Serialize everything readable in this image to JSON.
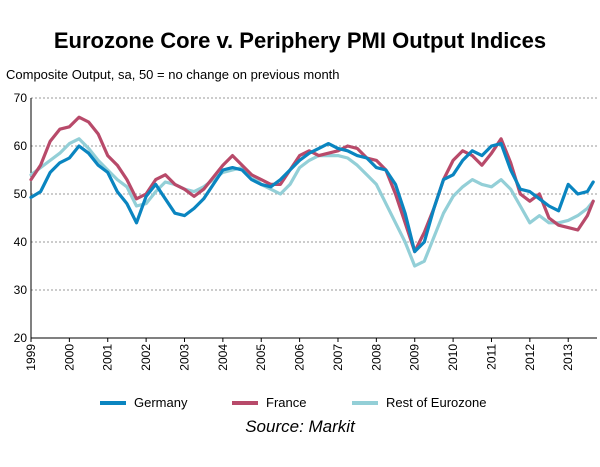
{
  "chart_data": {
    "type": "line",
    "title": "Eurozone Core v. Periphery PMI Output Indices",
    "subtitle": "Composite Output, sa, 50 = no change on previous month",
    "source": "Source: Markit",
    "ylim": [
      20,
      70
    ],
    "yticks": [
      20,
      30,
      40,
      50,
      60,
      70
    ],
    "xlim": [
      1999.0,
      2013.75
    ],
    "xticks": [
      "1999",
      "2000",
      "2001",
      "2002",
      "2003",
      "2004",
      "2005",
      "2006",
      "2007",
      "2008",
      "2009",
      "2010",
      "2011",
      "2012",
      "2013"
    ],
    "grid": "horizontal-dotted",
    "legend_position": "bottom",
    "series": [
      {
        "name": "Germany",
        "color": "#0a85c0",
        "points": [
          [
            1999.0,
            49.3
          ],
          [
            1999.25,
            50.5
          ],
          [
            1999.5,
            54.5
          ],
          [
            1999.75,
            56.5
          ],
          [
            2000.0,
            57.5
          ],
          [
            2000.25,
            60.0
          ],
          [
            2000.5,
            58.5
          ],
          [
            2000.75,
            56.0
          ],
          [
            2001.0,
            54.5
          ],
          [
            2001.25,
            50.5
          ],
          [
            2001.5,
            48.0
          ],
          [
            2001.75,
            44.0
          ],
          [
            2002.0,
            49.5
          ],
          [
            2002.25,
            52.0
          ],
          [
            2002.5,
            49.0
          ],
          [
            2002.75,
            46.0
          ],
          [
            2003.0,
            45.5
          ],
          [
            2003.25,
            47.0
          ],
          [
            2003.5,
            49.0
          ],
          [
            2003.75,
            52.0
          ],
          [
            2004.0,
            55.0
          ],
          [
            2004.25,
            55.5
          ],
          [
            2004.5,
            55.0
          ],
          [
            2004.75,
            53.0
          ],
          [
            2005.0,
            52.0
          ],
          [
            2005.25,
            51.5
          ],
          [
            2005.5,
            53.0
          ],
          [
            2005.75,
            55.0
          ],
          [
            2006.0,
            57.0
          ],
          [
            2006.25,
            58.5
          ],
          [
            2006.5,
            59.5
          ],
          [
            2006.75,
            60.5
          ],
          [
            2007.0,
            59.5
          ],
          [
            2007.25,
            59.0
          ],
          [
            2007.5,
            58.0
          ],
          [
            2007.75,
            57.5
          ],
          [
            2008.0,
            55.5
          ],
          [
            2008.25,
            55.0
          ],
          [
            2008.5,
            52.0
          ],
          [
            2008.75,
            46.0
          ],
          [
            2009.0,
            38.0
          ],
          [
            2009.25,
            40.0
          ],
          [
            2009.5,
            47.0
          ],
          [
            2009.75,
            53.0
          ],
          [
            2010.0,
            54.0
          ],
          [
            2010.25,
            57.0
          ],
          [
            2010.5,
            59.0
          ],
          [
            2010.75,
            58.0
          ],
          [
            2011.0,
            60.0
          ],
          [
            2011.25,
            60.5
          ],
          [
            2011.5,
            55.0
          ],
          [
            2011.75,
            51.0
          ],
          [
            2012.0,
            50.5
          ],
          [
            2012.25,
            49.0
          ],
          [
            2012.5,
            47.5
          ],
          [
            2012.75,
            46.5
          ],
          [
            2013.0,
            52.0
          ],
          [
            2013.25,
            50.0
          ],
          [
            2013.5,
            50.5
          ],
          [
            2013.65,
            52.5
          ]
        ]
      },
      {
        "name": "France",
        "color": "#b84a6a",
        "points": [
          [
            1999.0,
            53.0
          ],
          [
            1999.25,
            56.0
          ],
          [
            1999.5,
            61.0
          ],
          [
            1999.75,
            63.5
          ],
          [
            2000.0,
            64.0
          ],
          [
            2000.25,
            66.0
          ],
          [
            2000.5,
            65.0
          ],
          [
            2000.75,
            62.5
          ],
          [
            2001.0,
            58.0
          ],
          [
            2001.25,
            56.0
          ],
          [
            2001.5,
            53.0
          ],
          [
            2001.75,
            49.0
          ],
          [
            2002.0,
            50.0
          ],
          [
            2002.25,
            53.0
          ],
          [
            2002.5,
            54.0
          ],
          [
            2002.75,
            52.0
          ],
          [
            2003.0,
            51.0
          ],
          [
            2003.25,
            49.5
          ],
          [
            2003.5,
            51.0
          ],
          [
            2003.75,
            53.5
          ],
          [
            2004.0,
            56.0
          ],
          [
            2004.25,
            58.0
          ],
          [
            2004.5,
            56.0
          ],
          [
            2004.75,
            54.0
          ],
          [
            2005.0,
            53.0
          ],
          [
            2005.25,
            52.0
          ],
          [
            2005.5,
            52.0
          ],
          [
            2005.75,
            55.0
          ],
          [
            2006.0,
            58.0
          ],
          [
            2006.25,
            59.0
          ],
          [
            2006.5,
            58.0
          ],
          [
            2006.75,
            58.5
          ],
          [
            2007.0,
            59.0
          ],
          [
            2007.25,
            60.0
          ],
          [
            2007.5,
            59.5
          ],
          [
            2007.75,
            57.5
          ],
          [
            2008.0,
            57.0
          ],
          [
            2008.25,
            55.0
          ],
          [
            2008.5,
            50.0
          ],
          [
            2008.75,
            44.0
          ],
          [
            2009.0,
            38.0
          ],
          [
            2009.25,
            42.0
          ],
          [
            2009.5,
            47.0
          ],
          [
            2009.75,
            53.0
          ],
          [
            2010.0,
            57.0
          ],
          [
            2010.25,
            59.0
          ],
          [
            2010.5,
            58.0
          ],
          [
            2010.75,
            56.0
          ],
          [
            2011.0,
            58.5
          ],
          [
            2011.25,
            61.5
          ],
          [
            2011.5,
            56.5
          ],
          [
            2011.75,
            50.0
          ],
          [
            2012.0,
            48.5
          ],
          [
            2012.25,
            50.0
          ],
          [
            2012.5,
            45.0
          ],
          [
            2012.75,
            43.5
          ],
          [
            2013.0,
            43.0
          ],
          [
            2013.25,
            42.5
          ],
          [
            2013.5,
            45.5
          ],
          [
            2013.65,
            48.5
          ]
        ]
      },
      {
        "name": "Rest of Eurozone",
        "color": "#93cfd7",
        "points": [
          [
            1999.0,
            54.0
          ],
          [
            1999.25,
            55.5
          ],
          [
            1999.5,
            57.0
          ],
          [
            1999.75,
            58.5
          ],
          [
            2000.0,
            60.5
          ],
          [
            2000.25,
            61.5
          ],
          [
            2000.5,
            59.5
          ],
          [
            2000.75,
            57.0
          ],
          [
            2001.0,
            55.0
          ],
          [
            2001.25,
            53.0
          ],
          [
            2001.5,
            51.5
          ],
          [
            2001.75,
            47.5
          ],
          [
            2002.0,
            48.0
          ],
          [
            2002.25,
            50.5
          ],
          [
            2002.5,
            52.5
          ],
          [
            2002.75,
            52.0
          ],
          [
            2003.0,
            51.0
          ],
          [
            2003.25,
            50.5
          ],
          [
            2003.5,
            51.5
          ],
          [
            2003.75,
            53.0
          ],
          [
            2004.0,
            54.5
          ],
          [
            2004.25,
            55.0
          ],
          [
            2004.5,
            55.5
          ],
          [
            2004.75,
            54.0
          ],
          [
            2005.0,
            52.0
          ],
          [
            2005.25,
            51.0
          ],
          [
            2005.5,
            50.0
          ],
          [
            2005.75,
            52.0
          ],
          [
            2006.0,
            55.5
          ],
          [
            2006.25,
            57.0
          ],
          [
            2006.5,
            58.0
          ],
          [
            2006.75,
            58.0
          ],
          [
            2007.0,
            58.0
          ],
          [
            2007.25,
            57.5
          ],
          [
            2007.5,
            56.0
          ],
          [
            2007.75,
            54.0
          ],
          [
            2008.0,
            52.0
          ],
          [
            2008.25,
            48.0
          ],
          [
            2008.5,
            44.0
          ],
          [
            2008.75,
            40.0
          ],
          [
            2009.0,
            35.0
          ],
          [
            2009.25,
            36.0
          ],
          [
            2009.5,
            41.0
          ],
          [
            2009.75,
            46.0
          ],
          [
            2010.0,
            49.5
          ],
          [
            2010.25,
            51.5
          ],
          [
            2010.5,
            53.0
          ],
          [
            2010.75,
            52.0
          ],
          [
            2011.0,
            51.5
          ],
          [
            2011.25,
            53.0
          ],
          [
            2011.5,
            51.0
          ],
          [
            2011.75,
            47.5
          ],
          [
            2012.0,
            44.0
          ],
          [
            2012.25,
            45.5
          ],
          [
            2012.5,
            44.0
          ],
          [
            2012.75,
            44.0
          ],
          [
            2013.0,
            44.5
          ],
          [
            2013.25,
            45.5
          ],
          [
            2013.5,
            47.0
          ],
          [
            2013.65,
            48.5
          ]
        ]
      }
    ]
  }
}
